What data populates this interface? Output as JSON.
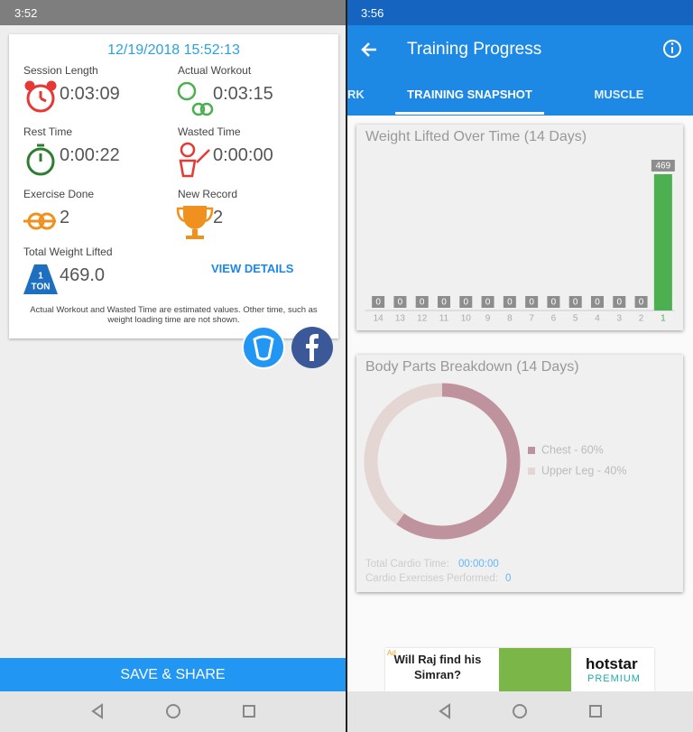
{
  "left": {
    "status_time": "3:52",
    "date": "12/19/2018 15:52:13",
    "stats": [
      {
        "label": "Session Length",
        "value": "0:03:09"
      },
      {
        "label": "Actual Workout",
        "value": "0:03:15"
      },
      {
        "label": "Rest Time",
        "value": "0:00:22"
      },
      {
        "label": "Wasted Time",
        "value": "0:00:00"
      },
      {
        "label": "Exercise Done",
        "value": "2"
      },
      {
        "label": "New Record",
        "value": "2"
      },
      {
        "label": "Total Weight Lifted",
        "value": "469.0"
      }
    ],
    "ton_icon": [
      "1",
      "TON"
    ],
    "view_details": "VIEW DETAILS",
    "note": "Actual Workout and Wasted Time are estimated values. Other time, such as weight loading time are not shown.",
    "save_button": "SAVE & SHARE"
  },
  "right": {
    "status_time": "3:56",
    "title": "Training Progress",
    "tabs": [
      "RK",
      "TRAINING SNAPSHOT",
      "MUSCLE"
    ],
    "cardio": [
      {
        "label": "Total Cardio Time:",
        "value": "00:00:00"
      },
      {
        "label": "Cardio Exercises Performed:",
        "value": "0"
      }
    ],
    "ad": {
      "badge": "Ad",
      "headline": "Will Raj find his Simran?",
      "brand": "hotstar",
      "tier": "PREMIUM"
    }
  },
  "chart_data": [
    {
      "type": "bar",
      "title": "Weight Lifted Over Time (14 Days)",
      "categories": [
        "14",
        "13",
        "12",
        "11",
        "10",
        "9",
        "8",
        "7",
        "6",
        "5",
        "4",
        "3",
        "2",
        "1"
      ],
      "values": [
        0,
        0,
        0,
        0,
        0,
        0,
        0,
        0,
        0,
        0,
        0,
        0,
        0,
        469
      ],
      "color": "#4caf50"
    },
    {
      "type": "pie",
      "donut": true,
      "title": "Body Parts Breakdown (14 Days)",
      "categories": [
        "Chest - 60%",
        "Upper Leg - 40%"
      ],
      "values": [
        60,
        40
      ],
      "colors": [
        "#bf939d",
        "#e4d6d2"
      ]
    }
  ]
}
